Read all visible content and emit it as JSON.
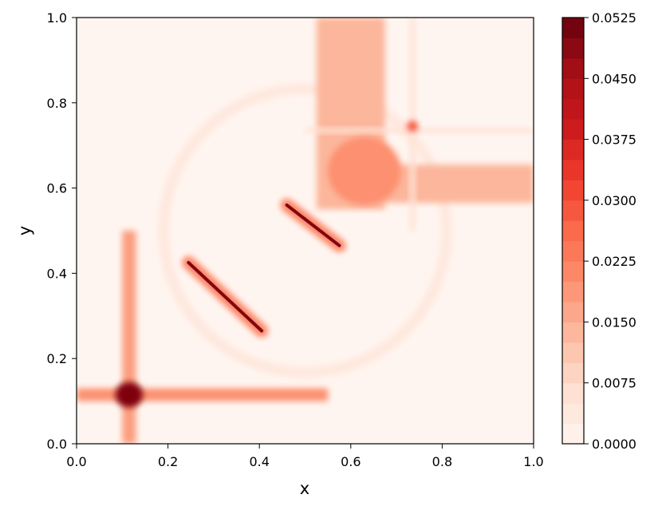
{
  "chart_data": {
    "type": "heatmap",
    "subtype": "filled-contour",
    "title": "",
    "xlabel": "x",
    "ylabel": "y",
    "xlim": [
      0.0,
      1.0
    ],
    "ylim": [
      0.0,
      1.0
    ],
    "xticks": [
      "0.0",
      "0.2",
      "0.4",
      "0.6",
      "0.8",
      "1.0"
    ],
    "yticks": [
      "0.0",
      "0.2",
      "0.4",
      "0.6",
      "0.8",
      "1.0"
    ],
    "colormap": "Reds",
    "grid": false,
    "colorbar": {
      "range": [
        0.0,
        0.0525
      ],
      "levels": 21,
      "ticks": [
        "0.0000",
        "0.0075",
        "0.0150",
        "0.0225",
        "0.0300",
        "0.0375",
        "0.0450",
        "0.0525"
      ]
    },
    "features": {
      "bands": [
        {
          "orient": "vertical",
          "center": 0.115,
          "width": 0.03,
          "from": 0.0,
          "to": 0.5,
          "value": 0.018
        },
        {
          "orient": "horizontal",
          "center": 0.115,
          "width": 0.03,
          "from": 0.0,
          "to": 0.55,
          "value": 0.02
        },
        {
          "orient": "vertical",
          "center": 0.6,
          "width": 0.15,
          "from": 0.55,
          "to": 1.0,
          "value": 0.014
        },
        {
          "orient": "horizontal",
          "center": 0.61,
          "width": 0.09,
          "from": 0.55,
          "to": 1.0,
          "value": 0.014
        },
        {
          "orient": "vertical",
          "center": 0.735,
          "width": 0.012,
          "from": 0.5,
          "to": 1.0,
          "value": 0.006
        },
        {
          "orient": "horizontal",
          "center": 0.735,
          "width": 0.012,
          "from": 0.5,
          "to": 1.0,
          "value": 0.006
        }
      ],
      "patches": [
        {
          "x": 0.63,
          "y": 0.64,
          "rx": 0.08,
          "ry": 0.08,
          "value": 0.02
        },
        {
          "x": 0.115,
          "y": 0.115,
          "rx": 0.03,
          "ry": 0.03,
          "value": 0.05
        },
        {
          "x": 0.735,
          "y": 0.745,
          "rx": 0.012,
          "ry": 0.012,
          "value": 0.03
        }
      ],
      "streaks": [
        {
          "x1": 0.245,
          "y1": 0.425,
          "x2": 0.405,
          "y2": 0.265,
          "value": 0.05
        },
        {
          "x1": 0.46,
          "y1": 0.56,
          "x2": 0.575,
          "y2": 0.465,
          "value": 0.05
        }
      ],
      "arc": {
        "cx": 0.5,
        "cy": 0.5,
        "r": 0.31,
        "value": 0.004
      }
    }
  }
}
